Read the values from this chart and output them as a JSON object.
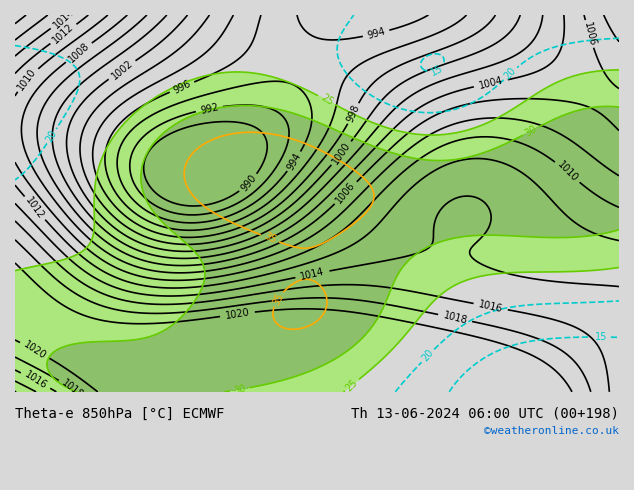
{
  "title_left": "Theta-e 850hPa [°C] ECMWF",
  "title_right": "Th 13-06-2024 06:00 UTC (00+198)",
  "copyright": "©weatheronline.co.uk",
  "bg_color": "#d8d8d8",
  "fig_width": 6.34,
  "fig_height": 4.9,
  "dpi": 100,
  "title_fontsize": 10,
  "copyright_fontsize": 8,
  "copyright_color": "#0066cc",
  "title_color": "#000000",
  "pressure_color": "#000000",
  "thetae_green_color": "#66cc00",
  "thetae_yellow_color": "#ffaa00",
  "thetae_cyan_color": "#00cccc",
  "thetae_blue_color": "#0066ff",
  "fill_green_color": "#99ee55",
  "fill_dark_green_color": "#44aa00",
  "pressure_linewidth": 1.2,
  "thetae_linewidth": 1.2,
  "contour_fontsize": 7
}
